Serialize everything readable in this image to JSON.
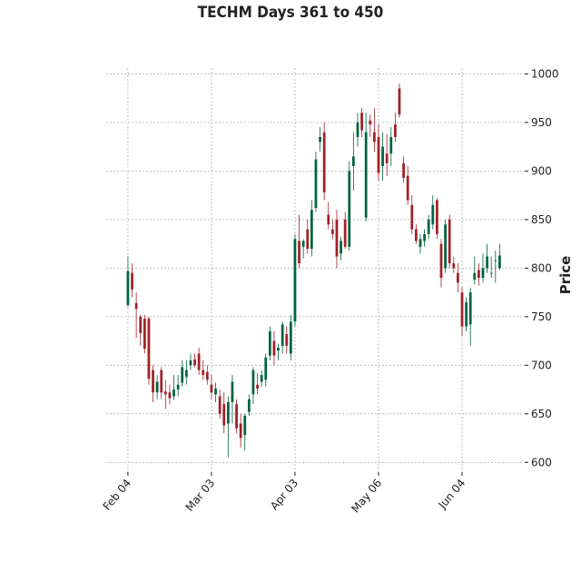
{
  "chart_data": {
    "type": "candlestick",
    "title": "TECHM Days 361 to 450",
    "ylabel": "Price",
    "up_color": "#006340",
    "down_color": "#a02128",
    "grid": true,
    "xlim": [
      -5.2,
      95
    ],
    "ylim": [
      590,
      1006
    ],
    "yticks": [
      600,
      650,
      700,
      750,
      800,
      850,
      900,
      950,
      1000
    ],
    "xticks": [
      {
        "value": 0,
        "label": "Feb 04"
      },
      {
        "value": 20,
        "label": "Mar 03"
      },
      {
        "value": 40,
        "label": "Apr 03"
      },
      {
        "value": 60,
        "label": "May 06"
      },
      {
        "value": 80,
        "label": "Jun 04"
      }
    ],
    "open": [
      762,
      795,
      764,
      750,
      748,
      748,
      695,
      672,
      695,
      673,
      672,
      668,
      675,
      682,
      688,
      700,
      706,
      712,
      695,
      693,
      680,
      670,
      668,
      660,
      640,
      662,
      660,
      640,
      628,
      652,
      670,
      680,
      683,
      685,
      710,
      725,
      715,
      720,
      732,
      712,
      745,
      828,
      822,
      840,
      820,
      862,
      930,
      940,
      855,
      840,
      850,
      815,
      850,
      822,
      905,
      935,
      960,
      852,
      952,
      940,
      935,
      905,
      918,
      918,
      948,
      985,
      908,
      895,
      865,
      840,
      822,
      828,
      835,
      845,
      870,
      825,
      800,
      850,
      805,
      795,
      775,
      740,
      742,
      788,
      798,
      790,
      800,
      795,
      808,
      800
    ],
    "high": [
      812,
      805,
      775,
      752,
      752,
      750,
      700,
      690,
      698,
      685,
      680,
      690,
      690,
      705,
      705,
      712,
      712,
      718,
      705,
      700,
      690,
      682,
      675,
      672,
      668,
      690,
      665,
      650,
      650,
      670,
      698,
      692,
      695,
      712,
      740,
      735,
      722,
      745,
      740,
      752,
      835,
      855,
      830,
      850,
      870,
      920,
      945,
      950,
      868,
      850,
      860,
      832,
      858,
      910,
      940,
      960,
      965,
      960,
      958,
      965,
      948,
      940,
      938,
      945,
      960,
      990,
      915,
      905,
      875,
      845,
      835,
      840,
      855,
      875,
      872,
      830,
      850,
      855,
      812,
      805,
      780,
      770,
      780,
      812,
      805,
      815,
      825,
      812,
      818,
      825
    ],
    "low": [
      760,
      770,
      728,
      720,
      712,
      680,
      662,
      665,
      665,
      655,
      660,
      664,
      668,
      678,
      680,
      695,
      698,
      690,
      685,
      680,
      665,
      662,
      645,
      630,
      605,
      640,
      630,
      615,
      612,
      648,
      660,
      670,
      678,
      678,
      705,
      700,
      705,
      712,
      712,
      705,
      740,
      800,
      810,
      815,
      812,
      858,
      920,
      870,
      840,
      830,
      800,
      808,
      820,
      818,
      880,
      925,
      935,
      848,
      935,
      920,
      890,
      890,
      895,
      905,
      930,
      955,
      888,
      865,
      835,
      825,
      815,
      822,
      830,
      840,
      830,
      780,
      795,
      800,
      795,
      775,
      730,
      735,
      720,
      783,
      782,
      785,
      795,
      790,
      785,
      798
    ],
    "close": [
      797,
      778,
      758,
      733,
      717,
      686,
      672,
      683,
      672,
      670,
      666,
      675,
      680,
      698,
      695,
      705,
      700,
      695,
      690,
      685,
      672,
      676,
      650,
      638,
      662,
      683,
      635,
      625,
      648,
      665,
      695,
      676,
      690,
      708,
      735,
      710,
      718,
      742,
      720,
      745,
      830,
      805,
      828,
      820,
      860,
      912,
      935,
      878,
      845,
      835,
      812,
      828,
      822,
      900,
      915,
      950,
      942,
      940,
      948,
      930,
      898,
      925,
      908,
      935,
      935,
      958,
      893,
      870,
      840,
      828,
      830,
      835,
      850,
      865,
      835,
      790,
      845,
      805,
      800,
      785,
      740,
      765,
      775,
      795,
      790,
      800,
      812,
      795,
      808,
      813
    ]
  }
}
